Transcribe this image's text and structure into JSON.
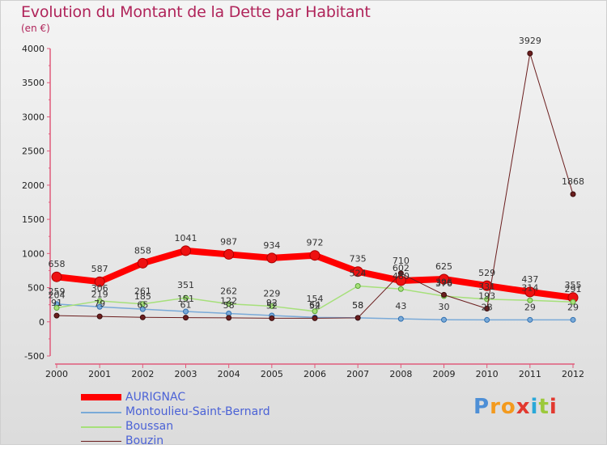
{
  "title": "Evolution du Montant de la Dette par Habitant",
  "subtitle": "(en €)",
  "logo": {
    "letters": [
      "P",
      "r",
      "o",
      "x",
      "i",
      "t",
      "i"
    ],
    "colors": [
      "#4e8fd6",
      "#f39a1e",
      "#f39a1e",
      "#e2392f",
      "#2aa8d8",
      "#9cc93b",
      "#e2392f"
    ]
  },
  "chart_data": {
    "type": "line",
    "x": [
      "2000",
      "2001",
      "2002",
      "2003",
      "2004",
      "2005",
      "2006",
      "2007",
      "2008",
      "2009",
      "2010",
      "2011",
      "2012"
    ],
    "ylim": [
      -500,
      4000
    ],
    "yticks": [
      -500,
      0,
      500,
      1000,
      1500,
      2000,
      2500,
      3000,
      3500,
      4000
    ],
    "grid": false,
    "legend_position": "bottom-left",
    "series": [
      {
        "name": "AURIGNAC",
        "color": "#ff0000",
        "width": 8,
        "values": [
          658,
          587,
          858,
          1041,
          987,
          934,
          972,
          735,
          602,
          625,
          529,
          437,
          355
        ]
      },
      {
        "name": "Montoulieu-Saint-Bernard",
        "color": "#7aaad8",
        "width": 1.5,
        "values": [
          259,
          219,
          185,
          151,
          122,
          92,
          64,
          58,
          43,
          30,
          28,
          29,
          29
        ]
      },
      {
        "name": "Boussan",
        "color": "#a6e07a",
        "width": 1.5,
        "values": [
          204,
          306,
          261,
          351,
          262,
          229,
          154,
          524,
          480,
          376,
          331,
          314,
          291
        ]
      },
      {
        "name": "Bouzin",
        "color": "#6b1e1e",
        "width": 1,
        "values": [
          91,
          79,
          65,
          61,
          58,
          52,
          52,
          58,
          710,
          396,
          193,
          3929,
          1868
        ]
      }
    ],
    "value_labels": [
      [
        "658",
        "587",
        "858",
        "1041",
        "987",
        "934",
        "972",
        "735",
        "602",
        "625",
        "529",
        "437",
        "355"
      ],
      [
        "259",
        "219",
        "185",
        "151",
        "122",
        "92",
        "64",
        "58",
        "43",
        "30",
        "28",
        "29",
        "29"
      ],
      [
        "204",
        "306",
        "261",
        "351",
        "262",
        "229",
        "154",
        "524",
        "480",
        "376",
        "331",
        "314",
        "291"
      ],
      [
        "91",
        "79",
        "65",
        "61",
        "58",
        "52",
        "52",
        "58",
        "710",
        "396",
        "193",
        "3929",
        "1868"
      ]
    ]
  }
}
